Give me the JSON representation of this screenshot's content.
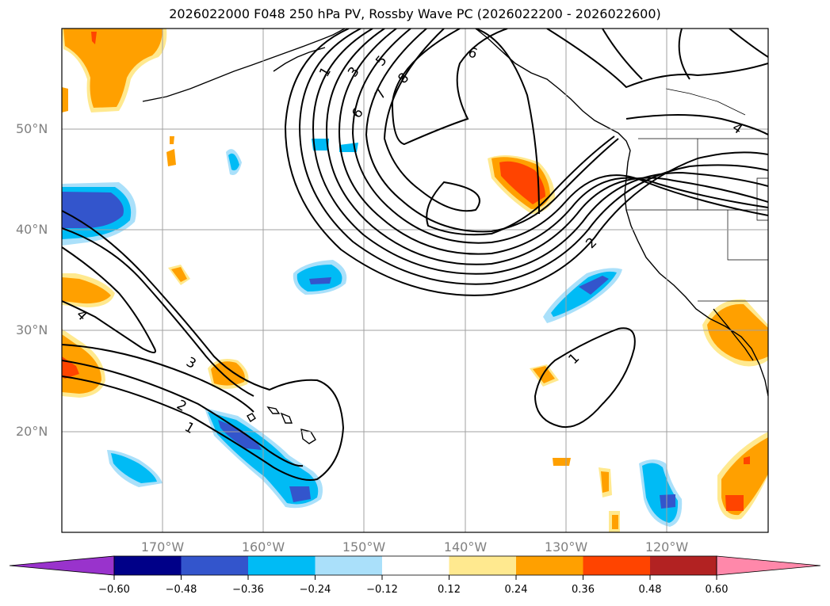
{
  "title": "2026022000 F048 250 hPa PV, Rossby Wave PC (2026022200 - 2026022600)",
  "lat_labels": [
    "50°N",
    "40°N",
    "30°N",
    "20°N"
  ],
  "lon_labels": [
    "170°W",
    "160°W",
    "150°W",
    "140°W",
    "130°W",
    "120°W"
  ],
  "contour_labels": [
    "1",
    "3",
    "5",
    "6",
    "7",
    "8",
    "9",
    "4",
    "2",
    "4",
    "3",
    "2",
    "1",
    "1"
  ],
  "colorbar": {
    "ticks": [
      "−0.60",
      "−0.48",
      "−0.36",
      "−0.24",
      "−0.12",
      "0.12",
      "0.24",
      "0.36",
      "0.48",
      "0.60"
    ],
    "colors": [
      "#9933cc",
      "#000088",
      "#3355cc",
      "#00bbf5",
      "#aae0fa",
      "#ffffff",
      "#ffe98f",
      "#ffa000",
      "#ff4400",
      "#b22222",
      "#ff88aa"
    ]
  },
  "chart_data": {
    "type": "map",
    "title": "2026022000 F048 250 hPa PV, Rossby Wave PC (2026022200 - 2026022600)",
    "lat_range": [
      10,
      60
    ],
    "lon_range": [
      -180,
      -110
    ],
    "lat_ticks": [
      20,
      30,
      40,
      50
    ],
    "lon_ticks": [
      -170,
      -160,
      -150,
      -140,
      -130,
      -120
    ],
    "contour_levels": [
      1,
      2,
      3,
      4,
      5,
      6,
      7,
      8,
      9
    ],
    "shading_levels": [
      -0.6,
      -0.48,
      -0.36,
      -0.24,
      -0.12,
      0.12,
      0.24,
      0.36,
      0.48,
      0.6
    ],
    "grid": true
  }
}
